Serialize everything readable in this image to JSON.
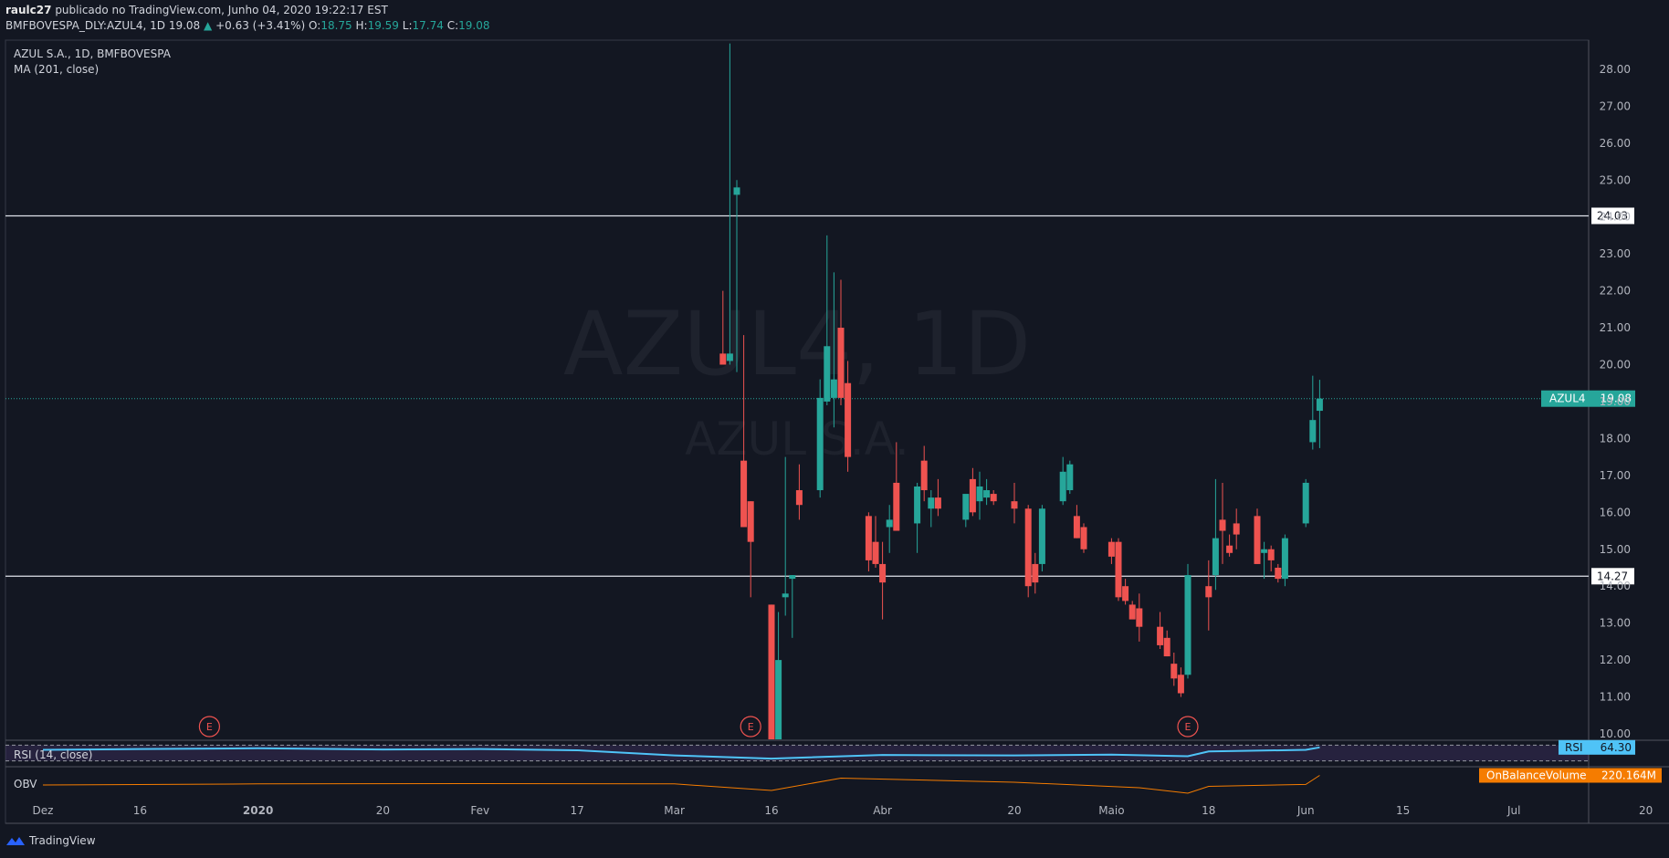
{
  "header": {
    "author": "raulc27",
    "published_text": "publicado no TradingView.com, Junho 04, 2020 19:22:17 EST",
    "symbol_line": "BMFBOVESPA_DLY:AZUL4, 1D",
    "last": "19.08",
    "change_arrow": "▲",
    "change": "+0.63 (+3.41%)",
    "open_label": "O:",
    "open": "18.75",
    "high_label": "H:",
    "high": "19.59",
    "low_label": "L:",
    "low": "17.74",
    "close_label": "C:",
    "close": "19.08"
  },
  "legend": {
    "title": "AZUL S.A., 1D, BMFBOVESPA",
    "ma": "MA (201, close)"
  },
  "watermark": {
    "main": "AZUL4, 1D",
    "sub": "AZUL S.A."
  },
  "footer": {
    "brand": "TradingView"
  },
  "colors": {
    "up": "#26a69a",
    "down": "#ef5350",
    "rsi": "#4fc3f7",
    "obv": "#f57c00",
    "background": "#131722"
  },
  "chart_data": [
    {
      "type": "candlestick",
      "title": "AZUL S.A., 1D, BMFBOVESPA",
      "symbol": "AZUL4",
      "ylim": [
        9.8,
        28.7
      ],
      "y_ticks": [
        "10.00",
        "11.00",
        "12.00",
        "13.00",
        "14.00",
        "15.00",
        "16.00",
        "17.00",
        "18.00",
        "19.00",
        "20.00",
        "21.00",
        "22.00",
        "23.00",
        "24.00",
        "25.00",
        "26.00",
        "27.00",
        "28.00"
      ],
      "x_tick_labels": [
        {
          "label": "Dez",
          "date": "2019-12-02"
        },
        {
          "label": "16",
          "date": "2019-12-16"
        },
        {
          "label": "2020",
          "date": "2020-01-02"
        },
        {
          "label": "20",
          "date": "2020-01-20"
        },
        {
          "label": "Fev",
          "date": "2020-02-03"
        },
        {
          "label": "17",
          "date": "2020-02-17"
        },
        {
          "label": "Mar",
          "date": "2020-03-02"
        },
        {
          "label": "16",
          "date": "2020-03-16"
        },
        {
          "label": "Abr",
          "date": "2020-04-01"
        },
        {
          "label": "20",
          "date": "2020-04-20"
        },
        {
          "label": "Maio",
          "date": "2020-05-04"
        },
        {
          "label": "18",
          "date": "2020-05-18"
        },
        {
          "label": "Jun",
          "date": "2020-06-01"
        },
        {
          "label": "15",
          "date": "2020-06-15"
        },
        {
          "label": "Jul",
          "date": "2020-07-01"
        },
        {
          "label": "20",
          "date": "2020-07-20"
        }
      ],
      "horizontal_levels": [
        24.03,
        14.27
      ],
      "last_price": 19.08,
      "last_price_label": "AZUL4",
      "earnings_markers": {
        "label": "E",
        "dates": [
          "2019-12-26",
          "2020-03-13",
          "2020-05-15"
        ]
      },
      "candles": [
        {
          "date": "2020-03-09",
          "o": 20.3,
          "h": 22.0,
          "l": 20.0,
          "c": 20.0
        },
        {
          "date": "2020-03-10",
          "o": 20.1,
          "h": 28.7,
          "l": 20.0,
          "c": 20.3
        },
        {
          "date": "2020-03-11",
          "o": 24.6,
          "h": 25.0,
          "l": 19.8,
          "c": 24.8
        },
        {
          "date": "2020-03-12",
          "o": 17.4,
          "h": 20.8,
          "l": 15.6,
          "c": 15.6
        },
        {
          "date": "2020-03-13",
          "o": 16.3,
          "h": 16.3,
          "l": 13.7,
          "c": 15.2
        },
        {
          "date": "2020-03-16",
          "o": 13.5,
          "h": 13.5,
          "l": 9.8,
          "c": 9.8
        },
        {
          "date": "2020-03-17",
          "o": 9.8,
          "h": 13.3,
          "l": 9.8,
          "c": 12.0
        },
        {
          "date": "2020-03-18",
          "o": 13.7,
          "h": 17.5,
          "l": 13.2,
          "c": 13.8
        },
        {
          "date": "2020-03-19",
          "o": 14.2,
          "h": 14.3,
          "l": 12.6,
          "c": 14.3
        },
        {
          "date": "2020-03-20",
          "o": 16.6,
          "h": 17.3,
          "l": 15.8,
          "c": 16.2
        },
        {
          "date": "2020-03-23",
          "o": 16.6,
          "h": 19.6,
          "l": 16.4,
          "c": 19.1
        },
        {
          "date": "2020-03-24",
          "o": 19.0,
          "h": 23.5,
          "l": 18.9,
          "c": 20.5
        },
        {
          "date": "2020-03-25",
          "o": 19.1,
          "h": 22.5,
          "l": 18.3,
          "c": 19.6
        },
        {
          "date": "2020-03-26",
          "o": 21.0,
          "h": 22.3,
          "l": 18.9,
          "c": 19.1
        },
        {
          "date": "2020-03-27",
          "o": 19.5,
          "h": 20.1,
          "l": 17.1,
          "c": 17.5
        },
        {
          "date": "2020-03-30",
          "o": 15.9,
          "h": 16.0,
          "l": 14.4,
          "c": 14.7
        },
        {
          "date": "2020-03-31",
          "o": 15.2,
          "h": 15.9,
          "l": 14.5,
          "c": 14.6
        },
        {
          "date": "2020-04-01",
          "o": 14.6,
          "h": 15.2,
          "l": 13.1,
          "c": 14.1
        },
        {
          "date": "2020-04-02",
          "o": 15.6,
          "h": 16.2,
          "l": 14.9,
          "c": 15.8
        },
        {
          "date": "2020-04-03",
          "o": 16.8,
          "h": 17.9,
          "l": 15.5,
          "c": 15.5
        },
        {
          "date": "2020-04-06",
          "o": 15.7,
          "h": 16.8,
          "l": 14.9,
          "c": 16.7
        },
        {
          "date": "2020-04-07",
          "o": 17.4,
          "h": 17.8,
          "l": 16.3,
          "c": 16.6
        },
        {
          "date": "2020-04-08",
          "o": 16.1,
          "h": 16.6,
          "l": 15.6,
          "c": 16.4
        },
        {
          "date": "2020-04-09",
          "o": 16.4,
          "h": 16.9,
          "l": 15.9,
          "c": 16.1
        },
        {
          "date": "2020-04-13",
          "o": 15.8,
          "h": 16.4,
          "l": 15.6,
          "c": 16.5
        },
        {
          "date": "2020-04-14",
          "o": 16.9,
          "h": 17.2,
          "l": 15.9,
          "c": 16.0
        },
        {
          "date": "2020-04-15",
          "o": 16.3,
          "h": 17.1,
          "l": 15.8,
          "c": 16.7
        },
        {
          "date": "2020-04-16",
          "o": 16.4,
          "h": 16.9,
          "l": 16.2,
          "c": 16.6
        },
        {
          "date": "2020-04-17",
          "o": 16.5,
          "h": 16.6,
          "l": 16.2,
          "c": 16.3
        },
        {
          "date": "2020-04-20",
          "o": 16.3,
          "h": 16.8,
          "l": 15.7,
          "c": 16.1
        },
        {
          "date": "2020-04-22",
          "o": 16.1,
          "h": 16.2,
          "l": 13.7,
          "c": 14.0
        },
        {
          "date": "2020-04-23",
          "o": 14.6,
          "h": 14.9,
          "l": 13.8,
          "c": 14.1
        },
        {
          "date": "2020-04-24",
          "o": 14.6,
          "h": 16.2,
          "l": 14.4,
          "c": 16.1
        },
        {
          "date": "2020-04-27",
          "o": 16.3,
          "h": 17.5,
          "l": 16.2,
          "c": 17.1
        },
        {
          "date": "2020-04-28",
          "o": 16.6,
          "h": 17.4,
          "l": 16.5,
          "c": 17.3
        },
        {
          "date": "2020-04-29",
          "o": 15.9,
          "h": 16.2,
          "l": 15.3,
          "c": 15.3
        },
        {
          "date": "2020-04-30",
          "o": 15.6,
          "h": 15.7,
          "l": 14.9,
          "c": 15.0
        },
        {
          "date": "2020-05-04",
          "o": 15.2,
          "h": 15.3,
          "l": 14.6,
          "c": 14.8
        },
        {
          "date": "2020-05-05",
          "o": 15.2,
          "h": 15.3,
          "l": 13.6,
          "c": 13.7
        },
        {
          "date": "2020-05-06",
          "o": 14.0,
          "h": 14.2,
          "l": 13.5,
          "c": 13.6
        },
        {
          "date": "2020-05-07",
          "o": 13.5,
          "h": 13.6,
          "l": 13.2,
          "c": 13.1
        },
        {
          "date": "2020-05-08",
          "o": 13.4,
          "h": 13.8,
          "l": 12.5,
          "c": 12.9
        },
        {
          "date": "2020-05-11",
          "o": 12.9,
          "h": 13.3,
          "l": 12.3,
          "c": 12.4
        },
        {
          "date": "2020-05-12",
          "o": 12.6,
          "h": 12.8,
          "l": 12.1,
          "c": 12.1
        },
        {
          "date": "2020-05-13",
          "o": 11.9,
          "h": 12.2,
          "l": 11.3,
          "c": 11.5
        },
        {
          "date": "2020-05-14",
          "o": 11.6,
          "h": 11.8,
          "l": 11.0,
          "c": 11.1
        },
        {
          "date": "2020-05-15",
          "o": 11.6,
          "h": 14.6,
          "l": 11.5,
          "c": 14.3
        },
        {
          "date": "2020-05-18",
          "o": 14.0,
          "h": 14.7,
          "l": 12.8,
          "c": 13.7
        },
        {
          "date": "2020-05-19",
          "o": 14.3,
          "h": 16.9,
          "l": 13.9,
          "c": 15.3
        },
        {
          "date": "2020-05-20",
          "o": 15.8,
          "h": 16.8,
          "l": 14.6,
          "c": 15.5
        },
        {
          "date": "2020-05-21",
          "o": 15.1,
          "h": 15.4,
          "l": 14.8,
          "c": 14.9
        },
        {
          "date": "2020-05-22",
          "o": 15.7,
          "h": 16.1,
          "l": 15.0,
          "c": 15.4
        },
        {
          "date": "2020-05-25",
          "o": 15.9,
          "h": 16.1,
          "l": 14.6,
          "c": 14.6
        },
        {
          "date": "2020-05-26",
          "o": 14.9,
          "h": 15.2,
          "l": 14.2,
          "c": 15.0
        },
        {
          "date": "2020-05-27",
          "o": 15.0,
          "h": 15.1,
          "l": 14.4,
          "c": 14.7
        },
        {
          "date": "2020-05-28",
          "o": 14.5,
          "h": 14.6,
          "l": 14.1,
          "c": 14.2
        },
        {
          "date": "2020-05-29",
          "o": 14.2,
          "h": 15.4,
          "l": 14.0,
          "c": 15.3
        },
        {
          "date": "2020-06-01",
          "o": 15.7,
          "h": 16.9,
          "l": 15.6,
          "c": 16.8
        },
        {
          "date": "2020-06-02",
          "o": 17.9,
          "h": 19.7,
          "l": 17.7,
          "c": 18.5
        },
        {
          "date": "2020-06-03",
          "o": 18.75,
          "h": 19.59,
          "l": 17.74,
          "c": 19.08
        }
      ]
    },
    {
      "type": "line",
      "name": "RSI (14, close)",
      "badge": "RSI",
      "last_value": "64.30",
      "levels": [
        70,
        30
      ],
      "ylim": [
        20,
        80
      ],
      "points": [
        {
          "date": "2019-12-02",
          "v": 58
        },
        {
          "date": "2019-12-16",
          "v": 60
        },
        {
          "date": "2020-01-02",
          "v": 62
        },
        {
          "date": "2020-01-20",
          "v": 59
        },
        {
          "date": "2020-02-03",
          "v": 60
        },
        {
          "date": "2020-02-17",
          "v": 57
        },
        {
          "date": "2020-03-02",
          "v": 44
        },
        {
          "date": "2020-03-16",
          "v": 36
        },
        {
          "date": "2020-04-01",
          "v": 45
        },
        {
          "date": "2020-04-20",
          "v": 44
        },
        {
          "date": "2020-05-04",
          "v": 46
        },
        {
          "date": "2020-05-15",
          "v": 42
        },
        {
          "date": "2020-05-18",
          "v": 54
        },
        {
          "date": "2020-06-01",
          "v": 58
        },
        {
          "date": "2020-06-03",
          "v": 64.3
        }
      ]
    },
    {
      "type": "line",
      "name": "OBV",
      "badge": "OnBalanceVolume",
      "last_value": "220.164M",
      "ylim": [
        0,
        100
      ],
      "points": [
        {
          "date": "2019-12-02",
          "v": 40
        },
        {
          "date": "2020-01-02",
          "v": 44
        },
        {
          "date": "2020-02-03",
          "v": 45
        },
        {
          "date": "2020-03-02",
          "v": 44
        },
        {
          "date": "2020-03-16",
          "v": 20
        },
        {
          "date": "2020-03-26",
          "v": 65
        },
        {
          "date": "2020-04-20",
          "v": 50
        },
        {
          "date": "2020-05-08",
          "v": 30
        },
        {
          "date": "2020-05-15",
          "v": 10
        },
        {
          "date": "2020-05-18",
          "v": 35
        },
        {
          "date": "2020-06-01",
          "v": 42
        },
        {
          "date": "2020-06-03",
          "v": 75
        }
      ]
    }
  ]
}
